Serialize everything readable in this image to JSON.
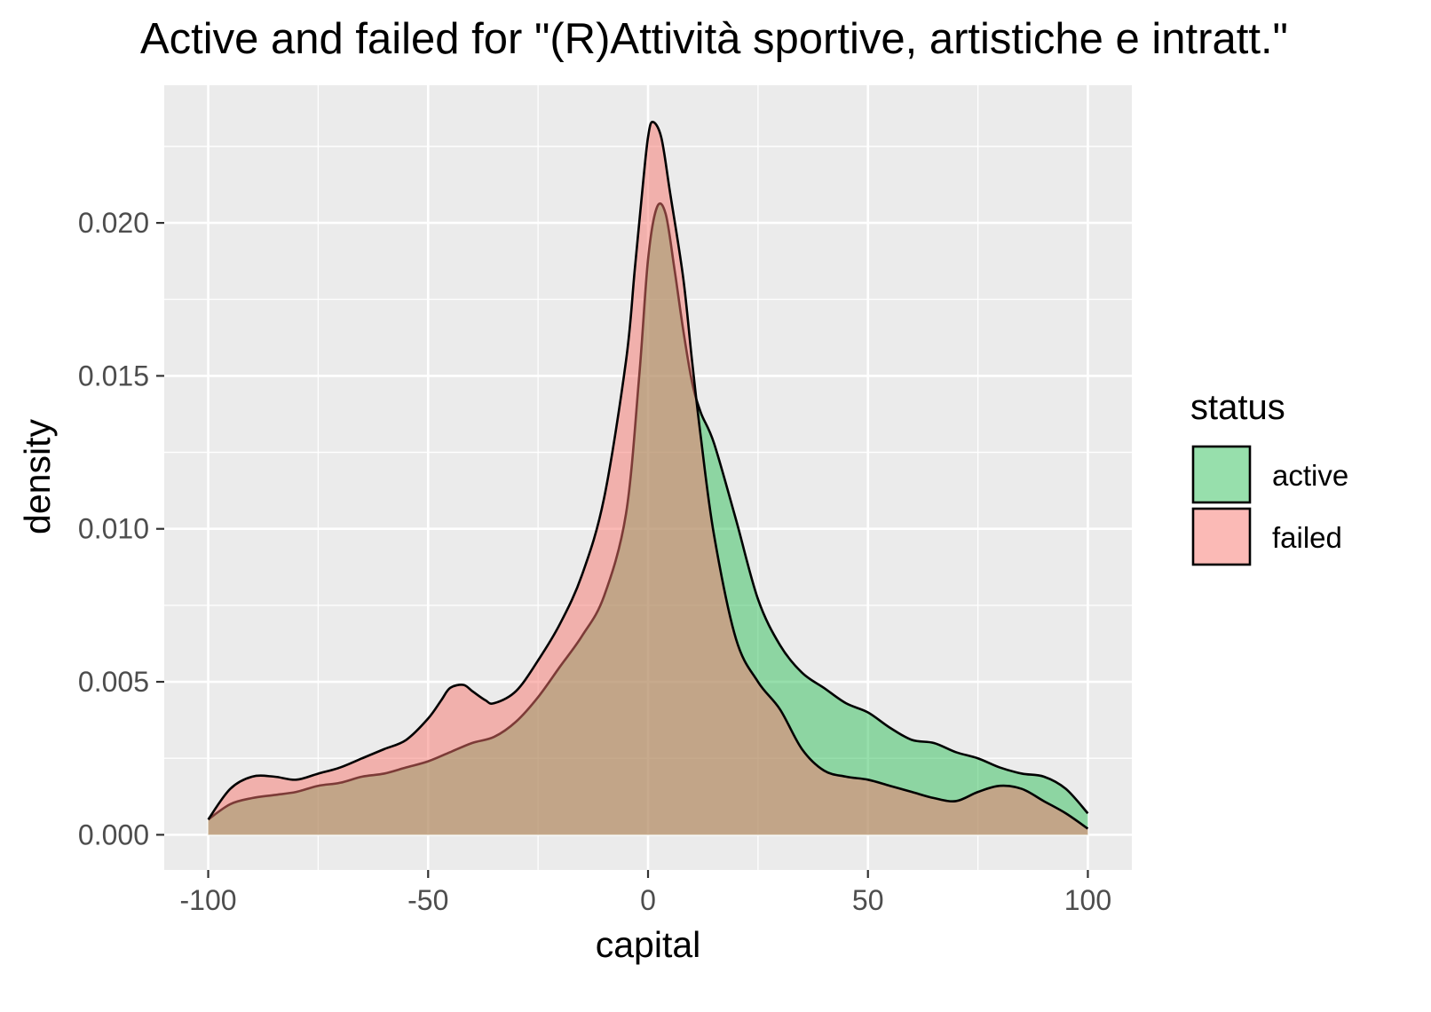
{
  "chart_data": {
    "type": "area",
    "title": "Active and failed for \"(R)Attività sportive, artistiche e intratt.\"",
    "xlabel": "capital",
    "ylabel": "density",
    "xlim": [
      -110,
      110
    ],
    "ylim": [
      -0.00115,
      0.0245
    ],
    "x_ticks": [
      -100,
      -50,
      0,
      50,
      100
    ],
    "x_tick_labels": [
      "-100",
      "-50",
      "0",
      "50",
      "100"
    ],
    "y_ticks": [
      0.0,
      0.005,
      0.01,
      0.015,
      0.02
    ],
    "y_tick_labels": [
      "0.000",
      "0.005",
      "0.010",
      "0.015",
      "0.020"
    ],
    "grid": true,
    "legend": {
      "title": "status",
      "position": "right"
    },
    "series": [
      {
        "name": "active",
        "color": "#2fbf5a",
        "x": [
          -100,
          -95,
          -90,
          -85,
          -80,
          -75,
          -70,
          -65,
          -60,
          -55,
          -50,
          -45,
          -40,
          -35,
          -30,
          -25,
          -20,
          -15,
          -10,
          -5,
          -2,
          0,
          2,
          4,
          6,
          8,
          10,
          12,
          15,
          20,
          25,
          30,
          35,
          40,
          45,
          50,
          55,
          60,
          65,
          70,
          75,
          80,
          85,
          90,
          95,
          100
        ],
        "values": [
          0.0005,
          0.001,
          0.0012,
          0.0013,
          0.0014,
          0.0016,
          0.0017,
          0.0019,
          0.002,
          0.0022,
          0.0024,
          0.0027,
          0.003,
          0.0032,
          0.0037,
          0.0045,
          0.0055,
          0.0065,
          0.0078,
          0.0105,
          0.015,
          0.0188,
          0.0205,
          0.0203,
          0.0185,
          0.0165,
          0.0148,
          0.0138,
          0.0128,
          0.0103,
          0.0077,
          0.0062,
          0.0053,
          0.0048,
          0.0043,
          0.004,
          0.0035,
          0.0031,
          0.003,
          0.0027,
          0.0025,
          0.0022,
          0.002,
          0.0019,
          0.0015,
          0.0007
        ]
      },
      {
        "name": "failed",
        "color": "#f8766d",
        "x": [
          -100,
          -95,
          -90,
          -85,
          -80,
          -75,
          -70,
          -65,
          -60,
          -55,
          -50,
          -47,
          -45,
          -42,
          -40,
          -37,
          -35,
          -30,
          -25,
          -20,
          -15,
          -10,
          -5,
          -3,
          -1,
          0,
          1,
          3,
          5,
          8,
          10,
          12,
          15,
          20,
          25,
          30,
          35,
          40,
          45,
          50,
          55,
          60,
          65,
          70,
          75,
          80,
          85,
          90,
          95,
          100
        ],
        "values": [
          0.0005,
          0.0015,
          0.0019,
          0.0019,
          0.0018,
          0.002,
          0.0022,
          0.0025,
          0.0028,
          0.0031,
          0.0038,
          0.0044,
          0.0048,
          0.0049,
          0.0047,
          0.0044,
          0.0043,
          0.0047,
          0.0057,
          0.0069,
          0.0085,
          0.011,
          0.0155,
          0.0185,
          0.0215,
          0.0228,
          0.0233,
          0.0228,
          0.021,
          0.0182,
          0.0155,
          0.013,
          0.0098,
          0.0064,
          0.005,
          0.0041,
          0.0028,
          0.0021,
          0.0019,
          0.0018,
          0.0016,
          0.0014,
          0.0012,
          0.0011,
          0.0014,
          0.0016,
          0.0015,
          0.0011,
          0.0007,
          0.0002
        ]
      }
    ]
  }
}
